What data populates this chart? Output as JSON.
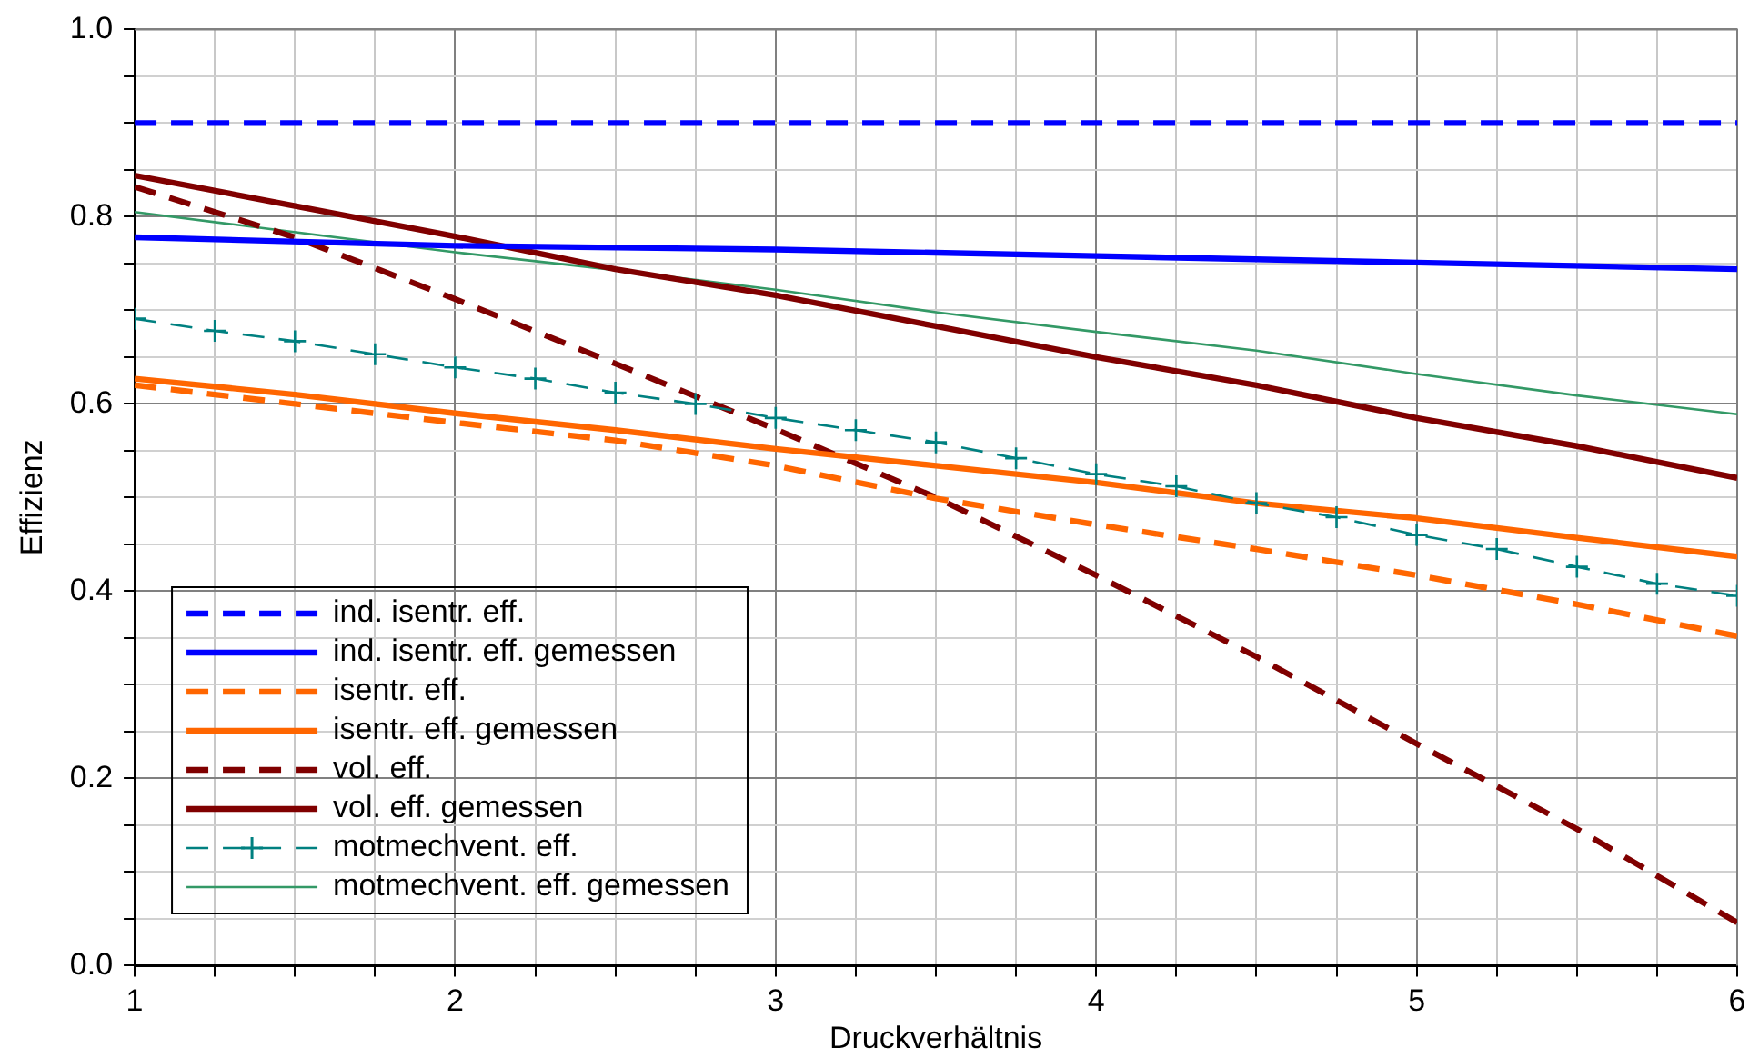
{
  "chart_data": {
    "type": "line",
    "xlabel": "Druckverhältnis",
    "ylabel": "Effizienz",
    "xlim": [
      1,
      6
    ],
    "xticks": [
      1,
      {
        "value": 1.25,
        "label": null
      },
      {
        "value": 1.5,
        "label": null
      },
      {
        "value": 1.75,
        "label": null
      },
      2,
      {
        "value": 2.25,
        "label": null
      },
      {
        "value": 2.5,
        "label": null
      },
      {
        "value": 2.75,
        "label": null
      },
      3,
      {
        "value": 3.25,
        "label": null
      },
      {
        "value": 3.5,
        "label": null
      },
      {
        "value": 3.75,
        "label": null
      },
      4,
      {
        "value": 4.25,
        "label": null
      },
      {
        "value": 4.5,
        "label": null
      },
      {
        "value": 4.75,
        "label": null
      },
      5,
      {
        "value": 5.25,
        "label": null
      },
      {
        "value": 5.5,
        "label": null
      },
      {
        "value": 5.75,
        "label": null
      },
      6
    ],
    "ylim": [
      0,
      1
    ],
    "yticks": [
      {
        "value": 0,
        "label": "0.0"
      },
      {
        "value": 0.05,
        "label": null
      },
      {
        "value": 0.1,
        "label": null
      },
      {
        "value": 0.15,
        "label": null
      },
      {
        "value": 0.2,
        "label": "0.2"
      },
      {
        "value": 0.25,
        "label": null
      },
      {
        "value": 0.3,
        "label": null
      },
      {
        "value": 0.35,
        "label": null
      },
      {
        "value": 0.4,
        "label": "0.4"
      },
      {
        "value": 0.45,
        "label": null
      },
      {
        "value": 0.5,
        "label": null
      },
      {
        "value": 0.55,
        "label": null
      },
      {
        "value": 0.6,
        "label": "0.6"
      },
      {
        "value": 0.65,
        "label": null
      },
      {
        "value": 0.7,
        "label": null
      },
      {
        "value": 0.75,
        "label": null
      },
      {
        "value": 0.8,
        "label": "0.8"
      },
      {
        "value": 0.85,
        "label": null
      },
      {
        "value": 0.9,
        "label": null
      },
      {
        "value": 0.95,
        "label": null
      },
      {
        "value": 1,
        "label": "1.0"
      }
    ],
    "grid": true,
    "legend": "bottom left",
    "marker": "none",
    "series": [
      {
        "name": "ind. isentr. eff.",
        "color": "#0000ff",
        "line_style": "dashed",
        "x": [
          1,
          6
        ],
        "values": [
          0.9,
          0.9
        ]
      },
      {
        "name": "ind. isentr. eff. gemessen",
        "color": "#0000ff",
        "line_style": "solid",
        "x": [
          1,
          2,
          3,
          4,
          5,
          6
        ],
        "values": [
          0.778,
          0.769,
          0.765,
          0.758,
          0.751,
          0.744
        ]
      },
      {
        "name": "isentr. eff.",
        "color": "#ff6600",
        "line_style": "dashed",
        "x": [
          1,
          1.5,
          2,
          2.5,
          3,
          3.5,
          4,
          4.5,
          5,
          5.5,
          6
        ],
        "values": [
          0.62,
          0.6,
          0.58,
          0.561,
          0.534,
          0.499,
          0.471,
          0.445,
          0.417,
          0.386,
          0.352
        ]
      },
      {
        "name": "isentr. eff. gemessen",
        "color": "#ff6600",
        "line_style": "solid",
        "x": [
          1,
          1.5,
          2,
          2.5,
          3,
          3.5,
          4,
          4.5,
          5,
          5.5,
          6
        ],
        "values": [
          0.627,
          0.61,
          0.59,
          0.572,
          0.552,
          0.534,
          0.516,
          0.494,
          0.478,
          0.457,
          0.437
        ]
      },
      {
        "name": "vol. eff.",
        "color": "#800000",
        "line_style": "dashed",
        "x": [
          1,
          1.5,
          2,
          2.5,
          3,
          3.5,
          4,
          4.5,
          5,
          5.5,
          6
        ],
        "values": [
          0.832,
          0.778,
          0.712,
          0.643,
          0.573,
          0.5,
          0.417,
          0.33,
          0.237,
          0.146,
          0.046
        ]
      },
      {
        "name": "vol. eff. gemessen",
        "color": "#800000",
        "line_style": "solid",
        "x": [
          1,
          2,
          2.5,
          3,
          3.5,
          4,
          4.5,
          5,
          5.5,
          6
        ],
        "values": [
          0.844,
          0.779,
          0.744,
          0.716,
          0.683,
          0.65,
          0.62,
          0.585,
          0.555,
          0.521
        ]
      },
      {
        "name": "motmechvent. eff.",
        "color": "#008080",
        "line_style": "dashed",
        "marker": "cross",
        "x": [
          1,
          1.25,
          1.5,
          1.75,
          2,
          2.25,
          2.5,
          2.75,
          3,
          3.25,
          3.5,
          3.75,
          4,
          4.25,
          4.5,
          4.75,
          5,
          5.25,
          5.5,
          5.75,
          6
        ],
        "values": [
          0.691,
          0.678,
          0.667,
          0.653,
          0.639,
          0.627,
          0.612,
          0.6,
          0.585,
          0.572,
          0.559,
          0.542,
          0.525,
          0.512,
          0.494,
          0.479,
          0.46,
          0.445,
          0.426,
          0.408,
          0.395
        ]
      },
      {
        "name": "motmechvent. eff. gemessen",
        "color": "#339966",
        "line_style": "solid",
        "x": [
          1,
          2,
          2.5,
          3,
          3.5,
          4,
          4.5,
          5,
          5.5,
          6
        ],
        "values": [
          0.805,
          0.762,
          0.743,
          0.722,
          0.698,
          0.677,
          0.657,
          0.632,
          0.609,
          0.589
        ]
      }
    ]
  }
}
